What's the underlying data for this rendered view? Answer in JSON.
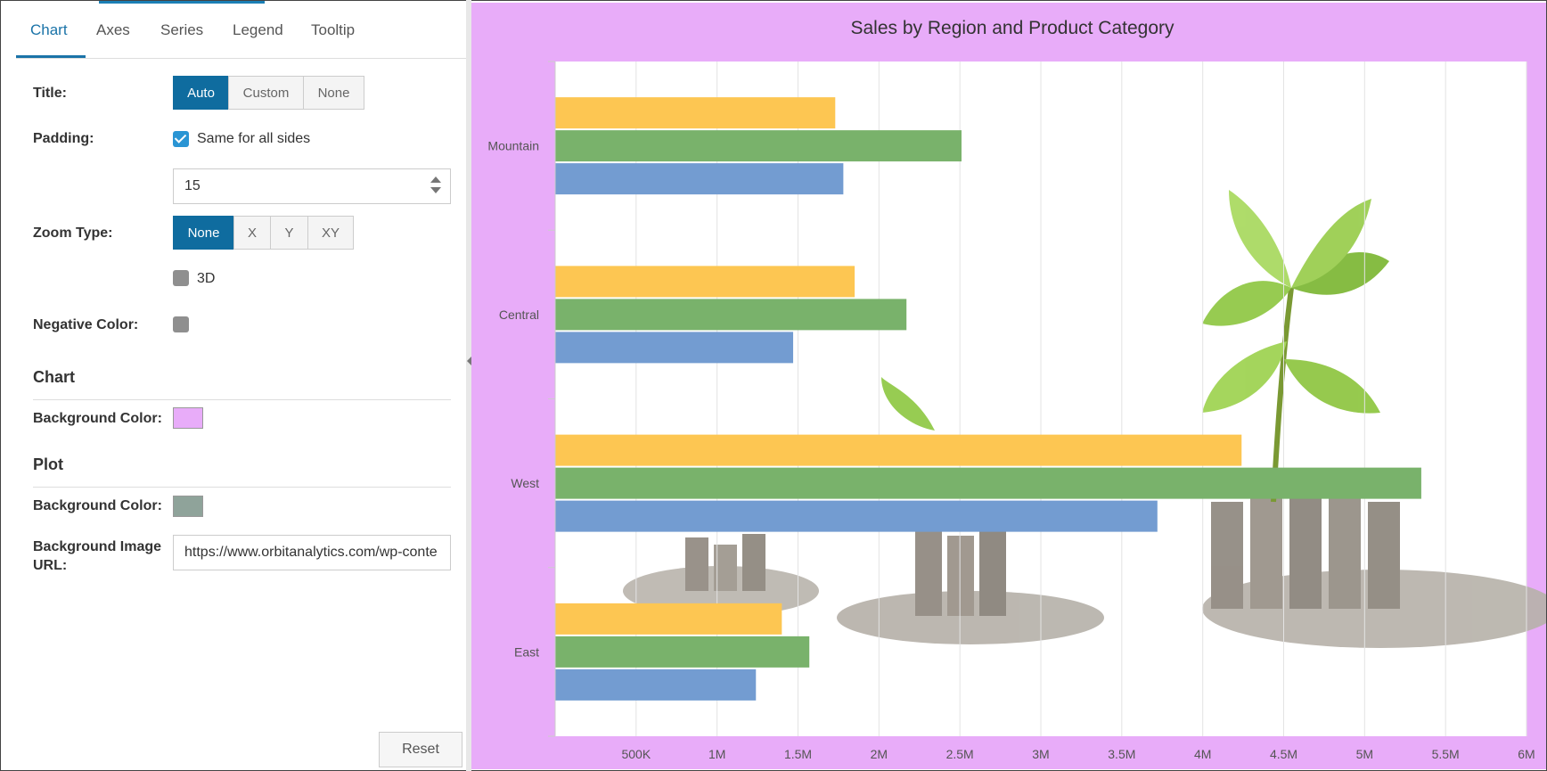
{
  "tabs": [
    {
      "label": "Chart",
      "active": true
    },
    {
      "label": "Axes",
      "active": false
    },
    {
      "label": "Series",
      "active": false
    },
    {
      "label": "Legend",
      "active": false
    },
    {
      "label": "Tooltip",
      "active": false
    }
  ],
  "settings": {
    "title_label": "Title:",
    "title_options": [
      "Auto",
      "Custom",
      "None"
    ],
    "title_selected": "Auto",
    "padding_label": "Padding:",
    "padding_same_label": "Same for all sides",
    "padding_same_checked": true,
    "padding_value": "15",
    "zoom_label": "Zoom Type:",
    "zoom_options": [
      "None",
      "X",
      "Y",
      "XY"
    ],
    "zoom_selected": "None",
    "threed_label": "3D",
    "threed_checked": false,
    "negative_color_label": "Negative Color:",
    "negative_color": "#8f8f8f",
    "chart_section": "Chart",
    "chart_bg_label": "Background Color:",
    "chart_bg_color": "#e8acf9",
    "plot_section": "Plot",
    "plot_bg_label": "Background Color:",
    "plot_bg_color": "#8fa39a",
    "bg_image_label_1": "Background Image",
    "bg_image_label_2": "URL:",
    "bg_image_url": "https://www.orbitanalytics.com/wp-conte",
    "reset_label": "Reset"
  },
  "colors": {
    "accent": "#0f6c9f",
    "chart_background": "#e8acf9",
    "series": [
      "#fdc652",
      "#79b26b",
      "#739cd1"
    ]
  },
  "chart_data": {
    "type": "bar",
    "orientation": "horizontal",
    "title": "Sales by Region and Product Category",
    "categories": [
      "Mountain",
      "Central",
      "West",
      "East"
    ],
    "series": [
      {
        "values": [
          1.73,
          1.85,
          4.24,
          1.4
        ]
      },
      {
        "values": [
          2.51,
          2.17,
          5.35,
          1.57
        ]
      },
      {
        "values": [
          1.78,
          1.47,
          3.72,
          1.24
        ]
      }
    ],
    "x_ticks": [
      "500K",
      "1M",
      "1.5M",
      "2M",
      "2.5M",
      "3M",
      "3.5M",
      "4M",
      "4.5M",
      "5M",
      "5.5M",
      "6M"
    ],
    "xlim": [
      0,
      6
    ],
    "units": "millions",
    "grid": true,
    "legend": "none",
    "background_image": "plant and coins"
  }
}
